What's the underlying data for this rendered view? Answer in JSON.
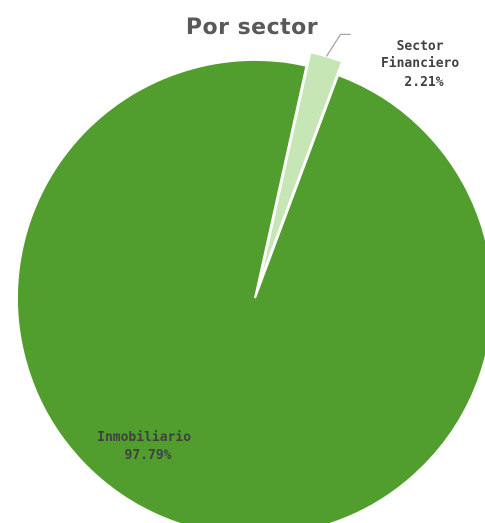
{
  "chart_data": {
    "type": "pie",
    "title": "Por sector",
    "slices": [
      {
        "label": "Sector Financiero",
        "label_lines": [
          "Sector",
          "Financiero"
        ],
        "value": 2.21,
        "value_text": "2.21%",
        "color": "#c6e6b5"
      },
      {
        "label": "Inmobiliario",
        "label_lines": [
          "Inmobiliario"
        ],
        "value": 97.79,
        "value_text": "97.79%",
        "color": "#519e2e"
      }
    ],
    "start_angle_deg": 12.5,
    "direction": "clockwise",
    "explode_first_slice": true,
    "slice_border_color": "#ffffff"
  }
}
